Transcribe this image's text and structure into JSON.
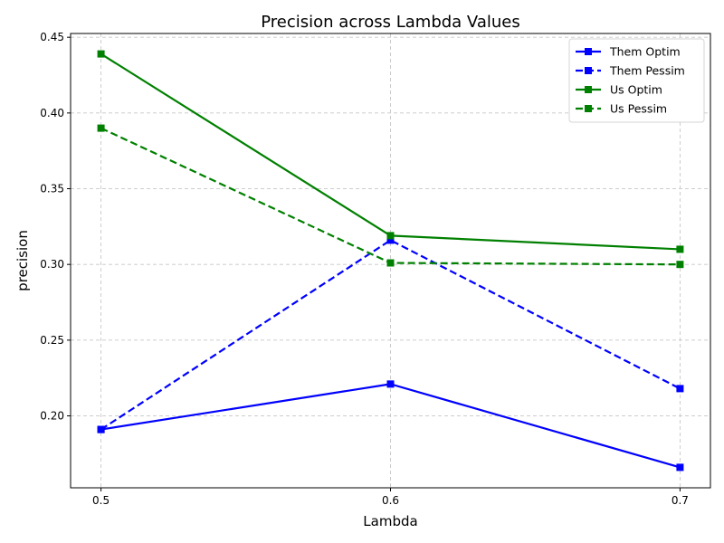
{
  "chart_data": {
    "type": "line",
    "title": "Precision across Lambda Values",
    "xlabel": "Lambda",
    "ylabel": "precision",
    "x": [
      0.5,
      0.6,
      0.7
    ],
    "x_tick_labels": [
      "0.5",
      "0.6",
      "0.7"
    ],
    "xlim": [
      0.4895,
      0.7105
    ],
    "ylim": [
      0.1525,
      0.4525
    ],
    "y_ticks": [
      0.2,
      0.25,
      0.3,
      0.35,
      0.4,
      0.45
    ],
    "y_tick_labels": [
      "0.20",
      "0.25",
      "0.30",
      "0.35",
      "0.40",
      "0.45"
    ],
    "grid": true,
    "legend_position": "top-right",
    "series": [
      {
        "name": "Them Optim",
        "values": [
          0.191,
          0.221,
          0.166
        ],
        "color": "#0000ff",
        "dash": "solid",
        "marker": "square"
      },
      {
        "name": "Them Pessim",
        "values": [
          0.191,
          0.316,
          0.218
        ],
        "color": "#0000ff",
        "dash": "dashed",
        "marker": "square"
      },
      {
        "name": "Us Optim",
        "values": [
          0.439,
          0.319,
          0.31
        ],
        "color": "#008000",
        "dash": "solid",
        "marker": "square"
      },
      {
        "name": "Us Pessim",
        "values": [
          0.39,
          0.301,
          0.3
        ],
        "color": "#008000",
        "dash": "dashed",
        "marker": "square"
      }
    ]
  }
}
